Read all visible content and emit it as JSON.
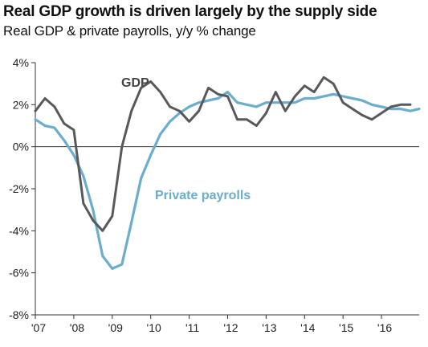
{
  "chart_data": {
    "type": "line",
    "title": "Real GDP growth is driven largely by the supply side",
    "subtitle": "Real GDP & private payrolls, y/y % change",
    "xlabel": "",
    "ylabel": "",
    "ylim": [
      -8,
      4
    ],
    "xlim": [
      2007.0,
      2016.98
    ],
    "y_ticks": [
      "4%",
      "2%",
      "0%",
      "-2%",
      "-4%",
      "-6%",
      "-8%"
    ],
    "y_tick_values": [
      4,
      2,
      0,
      -2,
      -4,
      -6,
      -8
    ],
    "x_ticks": [
      "'07",
      "'08",
      "'09",
      "'10",
      "'11",
      "'12",
      "'13",
      "'14",
      "'15",
      "'16"
    ],
    "x_tick_values": [
      2007,
      2008,
      2009,
      2010,
      2011,
      2012,
      2013,
      2014,
      2015,
      2016
    ],
    "grid": false,
    "legend": "inline labels",
    "series": [
      {
        "name": "GDP",
        "color": "#58595b",
        "x": [
          2007.0,
          2007.25,
          2007.5,
          2007.75,
          2008.0,
          2008.25,
          2008.5,
          2008.75,
          2009.0,
          2009.25,
          2009.5,
          2009.75,
          2010.0,
          2010.25,
          2010.5,
          2010.75,
          2011.0,
          2011.25,
          2011.5,
          2011.75,
          2012.0,
          2012.25,
          2012.5,
          2012.75,
          2013.0,
          2013.25,
          2013.5,
          2013.75,
          2014.0,
          2014.25,
          2014.5,
          2014.75,
          2015.0,
          2015.25,
          2015.5,
          2015.75,
          2016.0,
          2016.25,
          2016.5,
          2016.75
        ],
        "values": [
          1.7,
          2.3,
          1.9,
          1.1,
          0.8,
          -2.7,
          -3.5,
          -4.0,
          -3.3,
          0.0,
          1.7,
          2.8,
          3.1,
          2.6,
          1.9,
          1.7,
          1.2,
          1.7,
          2.8,
          2.5,
          2.4,
          1.3,
          1.3,
          1.0,
          1.6,
          2.6,
          1.7,
          2.4,
          2.9,
          2.6,
          3.3,
          3.0,
          2.1,
          1.8,
          1.5,
          1.3,
          1.6,
          1.9,
          2.0,
          2.0
        ]
      },
      {
        "name": "Private payrolls",
        "color": "#6aadcc",
        "x": [
          2007.0,
          2007.25,
          2007.5,
          2007.75,
          2008.0,
          2008.25,
          2008.5,
          2008.75,
          2009.0,
          2009.25,
          2009.5,
          2009.75,
          2010.0,
          2010.25,
          2010.5,
          2010.75,
          2011.0,
          2011.25,
          2011.5,
          2011.75,
          2012.0,
          2012.25,
          2012.5,
          2012.75,
          2013.0,
          2013.25,
          2013.5,
          2013.75,
          2014.0,
          2014.25,
          2014.5,
          2014.75,
          2015.0,
          2015.25,
          2015.5,
          2015.75,
          2016.0,
          2016.25,
          2016.5,
          2016.75,
          2016.98
        ],
        "values": [
          1.3,
          1.0,
          0.9,
          0.3,
          -0.4,
          -1.4,
          -3.0,
          -5.2,
          -5.8,
          -5.6,
          -3.6,
          -1.5,
          -0.4,
          0.6,
          1.2,
          1.6,
          1.9,
          2.1,
          2.2,
          2.3,
          2.6,
          2.1,
          2.0,
          1.9,
          2.1,
          2.1,
          2.1,
          2.1,
          2.3,
          2.3,
          2.4,
          2.5,
          2.4,
          2.3,
          2.2,
          2.0,
          1.9,
          1.8,
          1.8,
          1.7,
          1.8
        ]
      }
    ],
    "annotations": [
      {
        "text": "GDP",
        "color": "#444444"
      },
      {
        "text": "Private payrolls",
        "color": "#6aadcc"
      }
    ]
  }
}
